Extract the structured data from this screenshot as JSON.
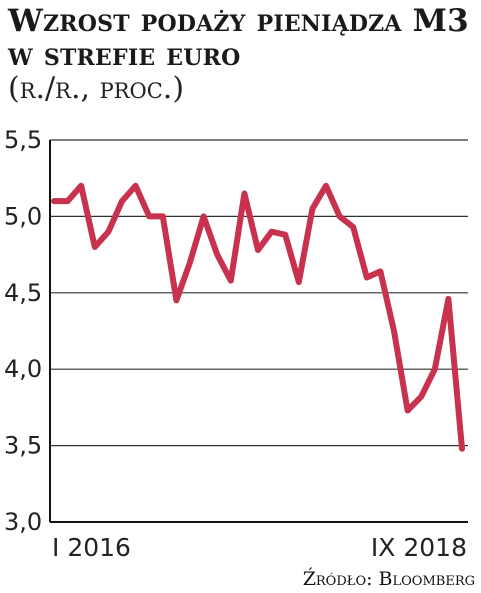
{
  "title": "Wzrost podaży pieniądza M3 w strefie euro",
  "subtitle": "(r./r., proc.)",
  "source": "Źródło: Bloomberg",
  "colors": {
    "line": "#c8324f",
    "grid": "#333333",
    "axis": "#111111"
  },
  "chart_data": {
    "type": "line",
    "title": "Wzrost podaży pieniądza M3 w strefie euro",
    "subtitle": "(r./r., proc.)",
    "x_start_label": "I 2016",
    "x_end_label": "IX 2018",
    "xtick_labels": [
      "I 2016",
      "IX 2018"
    ],
    "ylim": [
      3.0,
      5.5
    ],
    "yticks": [
      3.0,
      3.5,
      4.0,
      4.5,
      5.0,
      5.5
    ],
    "ytick_labels": [
      "3,0",
      "3,5",
      "4,0",
      "4,5",
      "5,0",
      "5,5"
    ],
    "grid": "horizontal",
    "series": [
      {
        "values": [
          5.1,
          5.1,
          5.2,
          4.8,
          4.9,
          5.1,
          5.2,
          5.0,
          5.0,
          4.45,
          4.7,
          5.0,
          4.75,
          4.58,
          5.15,
          4.78,
          4.9,
          4.88,
          4.57,
          5.05,
          5.2,
          5.0,
          4.93,
          4.6,
          4.64,
          4.25,
          3.73,
          3.82,
          4.0,
          4.46,
          3.48
        ]
      }
    ]
  }
}
